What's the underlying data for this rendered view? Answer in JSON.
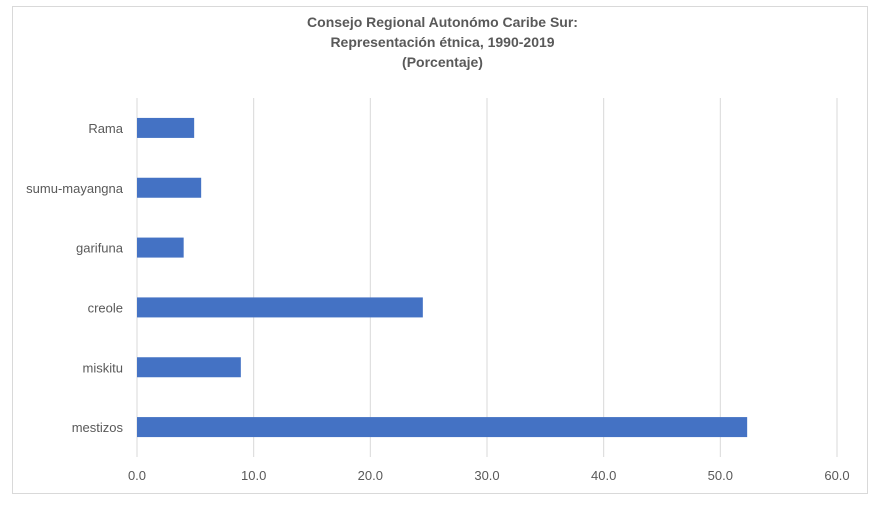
{
  "chart_data": {
    "type": "bar",
    "orientation": "horizontal",
    "title_lines": [
      "Consejo Regional Autonómo Caribe Sur:",
      "Representación étnica, 1990-2019",
      "(Porcentaje)"
    ],
    "categories": [
      "Rama",
      "sumu-mayangna",
      "garifuna",
      "creole",
      "miskitu",
      "mestizos"
    ],
    "values": [
      4.9,
      5.5,
      4.0,
      24.5,
      8.9,
      52.3
    ],
    "x_ticks": [
      "0.0",
      "10.0",
      "20.0",
      "30.0",
      "40.0",
      "50.0",
      "60.0"
    ],
    "xlim": [
      0,
      60
    ],
    "grid": "vertical",
    "legend": "none",
    "bar_color": "#4472c4",
    "grid_color": "#d9d9d9"
  }
}
